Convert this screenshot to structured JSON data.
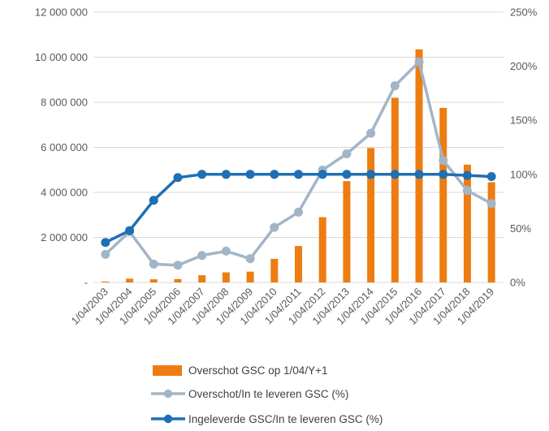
{
  "chart_data": {
    "type": "bar",
    "categories": [
      "1/04/2003",
      "1/04/2004",
      "1/04/2005",
      "1/04/2006",
      "1/04/2007",
      "1/04/2008",
      "1/04/2009",
      "1/04/2010",
      "1/04/2011",
      "1/04/2012",
      "1/04/2013",
      "1/04/2014",
      "1/04/2015",
      "1/04/2016",
      "1/04/2017",
      "1/04/2018",
      "1/04/2019"
    ],
    "y_left": {
      "ylim": [
        0,
        12000000
      ],
      "tick_labels": [
        "-",
        "2 000 000",
        "4 000 000",
        "6 000 000",
        "8 000 000",
        "10 000 000",
        "12 000 000"
      ]
    },
    "y_right": {
      "ylim": [
        0,
        250
      ],
      "unit": "%",
      "tick_labels": [
        "0%",
        "50%",
        "100%",
        "150%",
        "200%",
        "250%"
      ]
    },
    "grid": "horizontal",
    "legend_position": "bottom",
    "series": [
      {
        "name": "Overschot GSC op 1/04/Y+1",
        "kind": "bar",
        "axis": "left",
        "color": "#ED7D12",
        "values": [
          40000,
          170000,
          140000,
          150000,
          320000,
          450000,
          480000,
          1050000,
          1620000,
          2900000,
          4500000,
          5970000,
          8200000,
          10350000,
          7750000,
          5230000,
          4450000
        ]
      },
      {
        "name": "Overschot/In te leveren GSC (%)",
        "kind": "line",
        "axis": "right",
        "color": "#A2B5C8",
        "values": [
          26,
          47,
          17,
          16,
          25,
          29,
          22,
          51,
          65,
          104,
          119,
          138,
          182,
          204,
          113,
          85,
          73
        ]
      },
      {
        "name": "Ingeleverde GSC/In te leveren GSC (%)",
        "kind": "line",
        "axis": "right",
        "color": "#1F6FB5",
        "values": [
          37,
          48,
          76,
          97,
          100,
          100,
          100,
          100,
          100,
          100,
          100,
          100,
          100,
          100,
          100,
          99,
          98
        ]
      }
    ]
  }
}
